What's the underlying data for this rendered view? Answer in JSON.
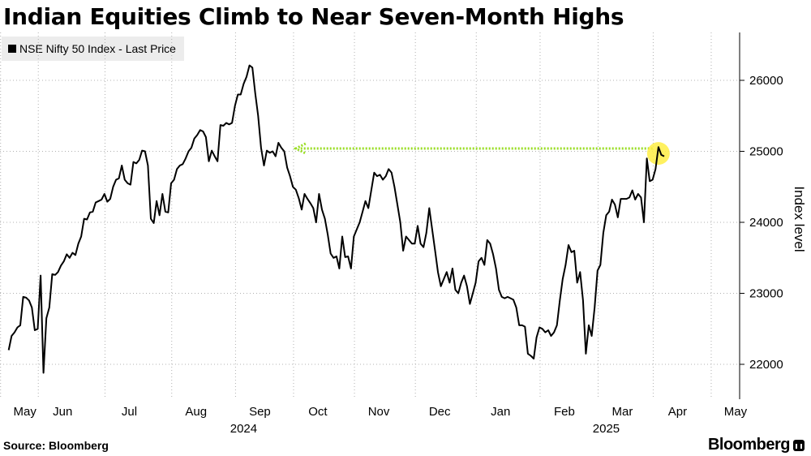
{
  "title": "Indian Equities Climb to Near Seven-Month Highs",
  "legend": {
    "label": "NSE Nifty 50 Index - Last Price"
  },
  "source": "Source: Bloomberg",
  "brand": "Bloomberg",
  "colors": {
    "line": "#000000",
    "grid": "#b0b0b0",
    "arrow": "#99dd22",
    "highlight": "#ffee44"
  },
  "chart_data": {
    "type": "line",
    "title": "Indian Equities Climb to Near Seven-Month Highs",
    "ylabel": "Index level",
    "ylim": [
      21500,
      26500
    ],
    "yticks": [
      22000,
      23000,
      24000,
      25000,
      26000
    ],
    "xticks": [
      {
        "label": "May",
        "x": 0
      },
      {
        "label": "Jun",
        "x": 13
      },
      {
        "label": "Jul",
        "x": 36
      },
      {
        "label": "Aug",
        "x": 59
      },
      {
        "label": "Sep",
        "x": 81
      },
      {
        "label": "Oct",
        "x": 101
      },
      {
        "label": "Nov",
        "x": 122
      },
      {
        "label": "Dec",
        "x": 143
      },
      {
        "label": "Jan",
        "x": 164
      },
      {
        "label": "Feb",
        "x": 186
      },
      {
        "label": "Mar",
        "x": 206
      },
      {
        "label": "Apr",
        "x": 225
      },
      {
        "label": "May",
        "x": 245
      }
    ],
    "year_labels": [
      {
        "label": "2024",
        "x": 81
      },
      {
        "label": "2025",
        "x": 206
      }
    ],
    "xlim": [
      -3,
      252
    ],
    "series": [
      {
        "name": "NSE Nifty 50 Index - Last Price",
        "points": [
          [
            0,
            22200
          ],
          [
            1,
            22400
          ],
          [
            2,
            22450
          ],
          [
            3,
            22520
          ],
          [
            4,
            22550
          ],
          [
            5,
            22950
          ],
          [
            6,
            22940
          ],
          [
            7,
            22900
          ],
          [
            8,
            22800
          ],
          [
            9,
            22480
          ],
          [
            10,
            22500
          ],
          [
            11,
            23250
          ],
          [
            12,
            21880
          ],
          [
            13,
            22650
          ],
          [
            14,
            22800
          ],
          [
            15,
            23270
          ],
          [
            16,
            23260
          ],
          [
            17,
            23300
          ],
          [
            18,
            23390
          ],
          [
            19,
            23450
          ],
          [
            20,
            23550
          ],
          [
            21,
            23500
          ],
          [
            22,
            23570
          ],
          [
            23,
            23540
          ],
          [
            24,
            23700
          ],
          [
            25,
            23800
          ],
          [
            26,
            24050
          ],
          [
            27,
            24040
          ],
          [
            28,
            24140
          ],
          [
            29,
            24150
          ],
          [
            30,
            24280
          ],
          [
            31,
            24300
          ],
          [
            32,
            24320
          ],
          [
            33,
            24400
          ],
          [
            34,
            24290
          ],
          [
            35,
            24330
          ],
          [
            36,
            24500
          ],
          [
            37,
            24600
          ],
          [
            38,
            24620
          ],
          [
            39,
            24800
          ],
          [
            40,
            24600
          ],
          [
            41,
            24550
          ],
          [
            42,
            24530
          ],
          [
            43,
            24850
          ],
          [
            44,
            24830
          ],
          [
            45,
            24880
          ],
          [
            46,
            25010
          ],
          [
            47,
            25000
          ],
          [
            48,
            24800
          ],
          [
            49,
            24050
          ],
          [
            50,
            23990
          ],
          [
            51,
            24300
          ],
          [
            52,
            24100
          ],
          [
            53,
            24400
          ],
          [
            54,
            24150
          ],
          [
            55,
            24140
          ],
          [
            56,
            24550
          ],
          [
            57,
            24600
          ],
          [
            58,
            24750
          ],
          [
            59,
            24800
          ],
          [
            60,
            24820
          ],
          [
            61,
            24900
          ],
          [
            62,
            25000
          ],
          [
            63,
            25050
          ],
          [
            64,
            25180
          ],
          [
            65,
            25230
          ],
          [
            66,
            25300
          ],
          [
            67,
            25280
          ],
          [
            68,
            25200
          ],
          [
            69,
            24860
          ],
          [
            70,
            25010
          ],
          [
            71,
            24930
          ],
          [
            72,
            24860
          ],
          [
            73,
            25370
          ],
          [
            74,
            25360
          ],
          [
            75,
            25400
          ],
          [
            76,
            25380
          ],
          [
            77,
            25400
          ],
          [
            78,
            25640
          ],
          [
            79,
            25800
          ],
          [
            80,
            25800
          ],
          [
            81,
            25950
          ],
          [
            82,
            26050
          ],
          [
            83,
            26210
          ],
          [
            84,
            26180
          ],
          [
            85,
            25820
          ],
          [
            86,
            25500
          ],
          [
            87,
            25050
          ],
          [
            88,
            24800
          ],
          [
            89,
            25010
          ],
          [
            90,
            24980
          ],
          [
            91,
            25000
          ],
          [
            92,
            24930
          ],
          [
            93,
            25120
          ],
          [
            94,
            25050
          ],
          [
            95,
            25000
          ],
          [
            96,
            24770
          ],
          [
            97,
            24650
          ],
          [
            98,
            24500
          ],
          [
            99,
            24460
          ],
          [
            100,
            24340
          ],
          [
            101,
            24180
          ],
          [
            102,
            24400
          ],
          [
            103,
            24330
          ],
          [
            104,
            24270
          ],
          [
            105,
            24200
          ],
          [
            106,
            24000
          ],
          [
            107,
            24400
          ],
          [
            108,
            24180
          ],
          [
            109,
            24050
          ],
          [
            110,
            23830
          ],
          [
            111,
            23560
          ],
          [
            112,
            23500
          ],
          [
            113,
            23520
          ],
          [
            114,
            23350
          ],
          [
            115,
            23800
          ],
          [
            116,
            23510
          ],
          [
            117,
            23520
          ],
          [
            118,
            23350
          ],
          [
            119,
            23800
          ],
          [
            120,
            23900
          ],
          [
            121,
            24000
          ],
          [
            122,
            24150
          ],
          [
            123,
            24300
          ],
          [
            124,
            24200
          ],
          [
            125,
            24450
          ],
          [
            126,
            24700
          ],
          [
            127,
            24650
          ],
          [
            128,
            24670
          ],
          [
            129,
            24600
          ],
          [
            130,
            24650
          ],
          [
            131,
            24750
          ],
          [
            132,
            24700
          ],
          [
            133,
            24500
          ],
          [
            134,
            24250
          ],
          [
            135,
            24000
          ],
          [
            136,
            23600
          ],
          [
            137,
            23800
          ],
          [
            138,
            23750
          ],
          [
            139,
            23700
          ],
          [
            140,
            23700
          ],
          [
            141,
            23950
          ],
          [
            142,
            23700
          ],
          [
            143,
            23650
          ],
          [
            144,
            23850
          ],
          [
            145,
            24200
          ],
          [
            146,
            23900
          ],
          [
            147,
            23600
          ],
          [
            148,
            23300
          ],
          [
            149,
            23100
          ],
          [
            150,
            23200
          ],
          [
            151,
            23300
          ],
          [
            152,
            23150
          ],
          [
            153,
            23350
          ],
          [
            154,
            23050
          ],
          [
            155,
            23000
          ],
          [
            156,
            23150
          ],
          [
            157,
            23250
          ],
          [
            158,
            23100
          ],
          [
            159,
            22850
          ],
          [
            160,
            23000
          ],
          [
            161,
            23150
          ],
          [
            162,
            23450
          ],
          [
            163,
            23500
          ],
          [
            164,
            23400
          ],
          [
            165,
            23750
          ],
          [
            166,
            23700
          ],
          [
            167,
            23550
          ],
          [
            168,
            23350
          ],
          [
            169,
            23050
          ],
          [
            170,
            22950
          ],
          [
            171,
            22930
          ],
          [
            172,
            22950
          ],
          [
            173,
            22930
          ],
          [
            174,
            22910
          ],
          [
            175,
            22800
          ],
          [
            176,
            22550
          ],
          [
            177,
            22550
          ],
          [
            178,
            22530
          ],
          [
            179,
            22150
          ],
          [
            180,
            22120
          ],
          [
            181,
            22080
          ],
          [
            182,
            22380
          ],
          [
            183,
            22520
          ],
          [
            184,
            22500
          ],
          [
            185,
            22450
          ],
          [
            186,
            22480
          ],
          [
            187,
            22400
          ],
          [
            188,
            22450
          ],
          [
            189,
            22550
          ],
          [
            190,
            22900
          ],
          [
            191,
            23200
          ],
          [
            192,
            23400
          ],
          [
            193,
            23680
          ],
          [
            194,
            23580
          ],
          [
            195,
            23600
          ],
          [
            196,
            23150
          ],
          [
            197,
            23300
          ],
          [
            198,
            22900
          ],
          [
            199,
            22150
          ],
          [
            200,
            22550
          ],
          [
            201,
            22400
          ],
          [
            202,
            22800
          ],
          [
            203,
            23320
          ],
          [
            204,
            23400
          ],
          [
            205,
            23850
          ],
          [
            206,
            24100
          ],
          [
            207,
            24150
          ],
          [
            208,
            24320
          ],
          [
            209,
            24250
          ],
          [
            210,
            24070
          ],
          [
            211,
            24330
          ],
          [
            212,
            24330
          ],
          [
            213,
            24330
          ],
          [
            214,
            24350
          ],
          [
            215,
            24450
          ],
          [
            216,
            24320
          ],
          [
            217,
            24400
          ],
          [
            218,
            24350
          ],
          [
            219,
            24000
          ],
          [
            220,
            24900
          ],
          [
            221,
            24580
          ],
          [
            222,
            24600
          ],
          [
            223,
            24750
          ],
          [
            224,
            25060
          ],
          [
            225,
            24950
          ],
          [
            226,
            24930
          ]
        ]
      }
    ],
    "annotations": [
      {
        "type": "arrow",
        "from": [
          222,
          25040
        ],
        "to": [
          99,
          25040
        ]
      },
      {
        "type": "highlight-circle",
        "at": [
          224,
          24970
        ]
      }
    ]
  }
}
